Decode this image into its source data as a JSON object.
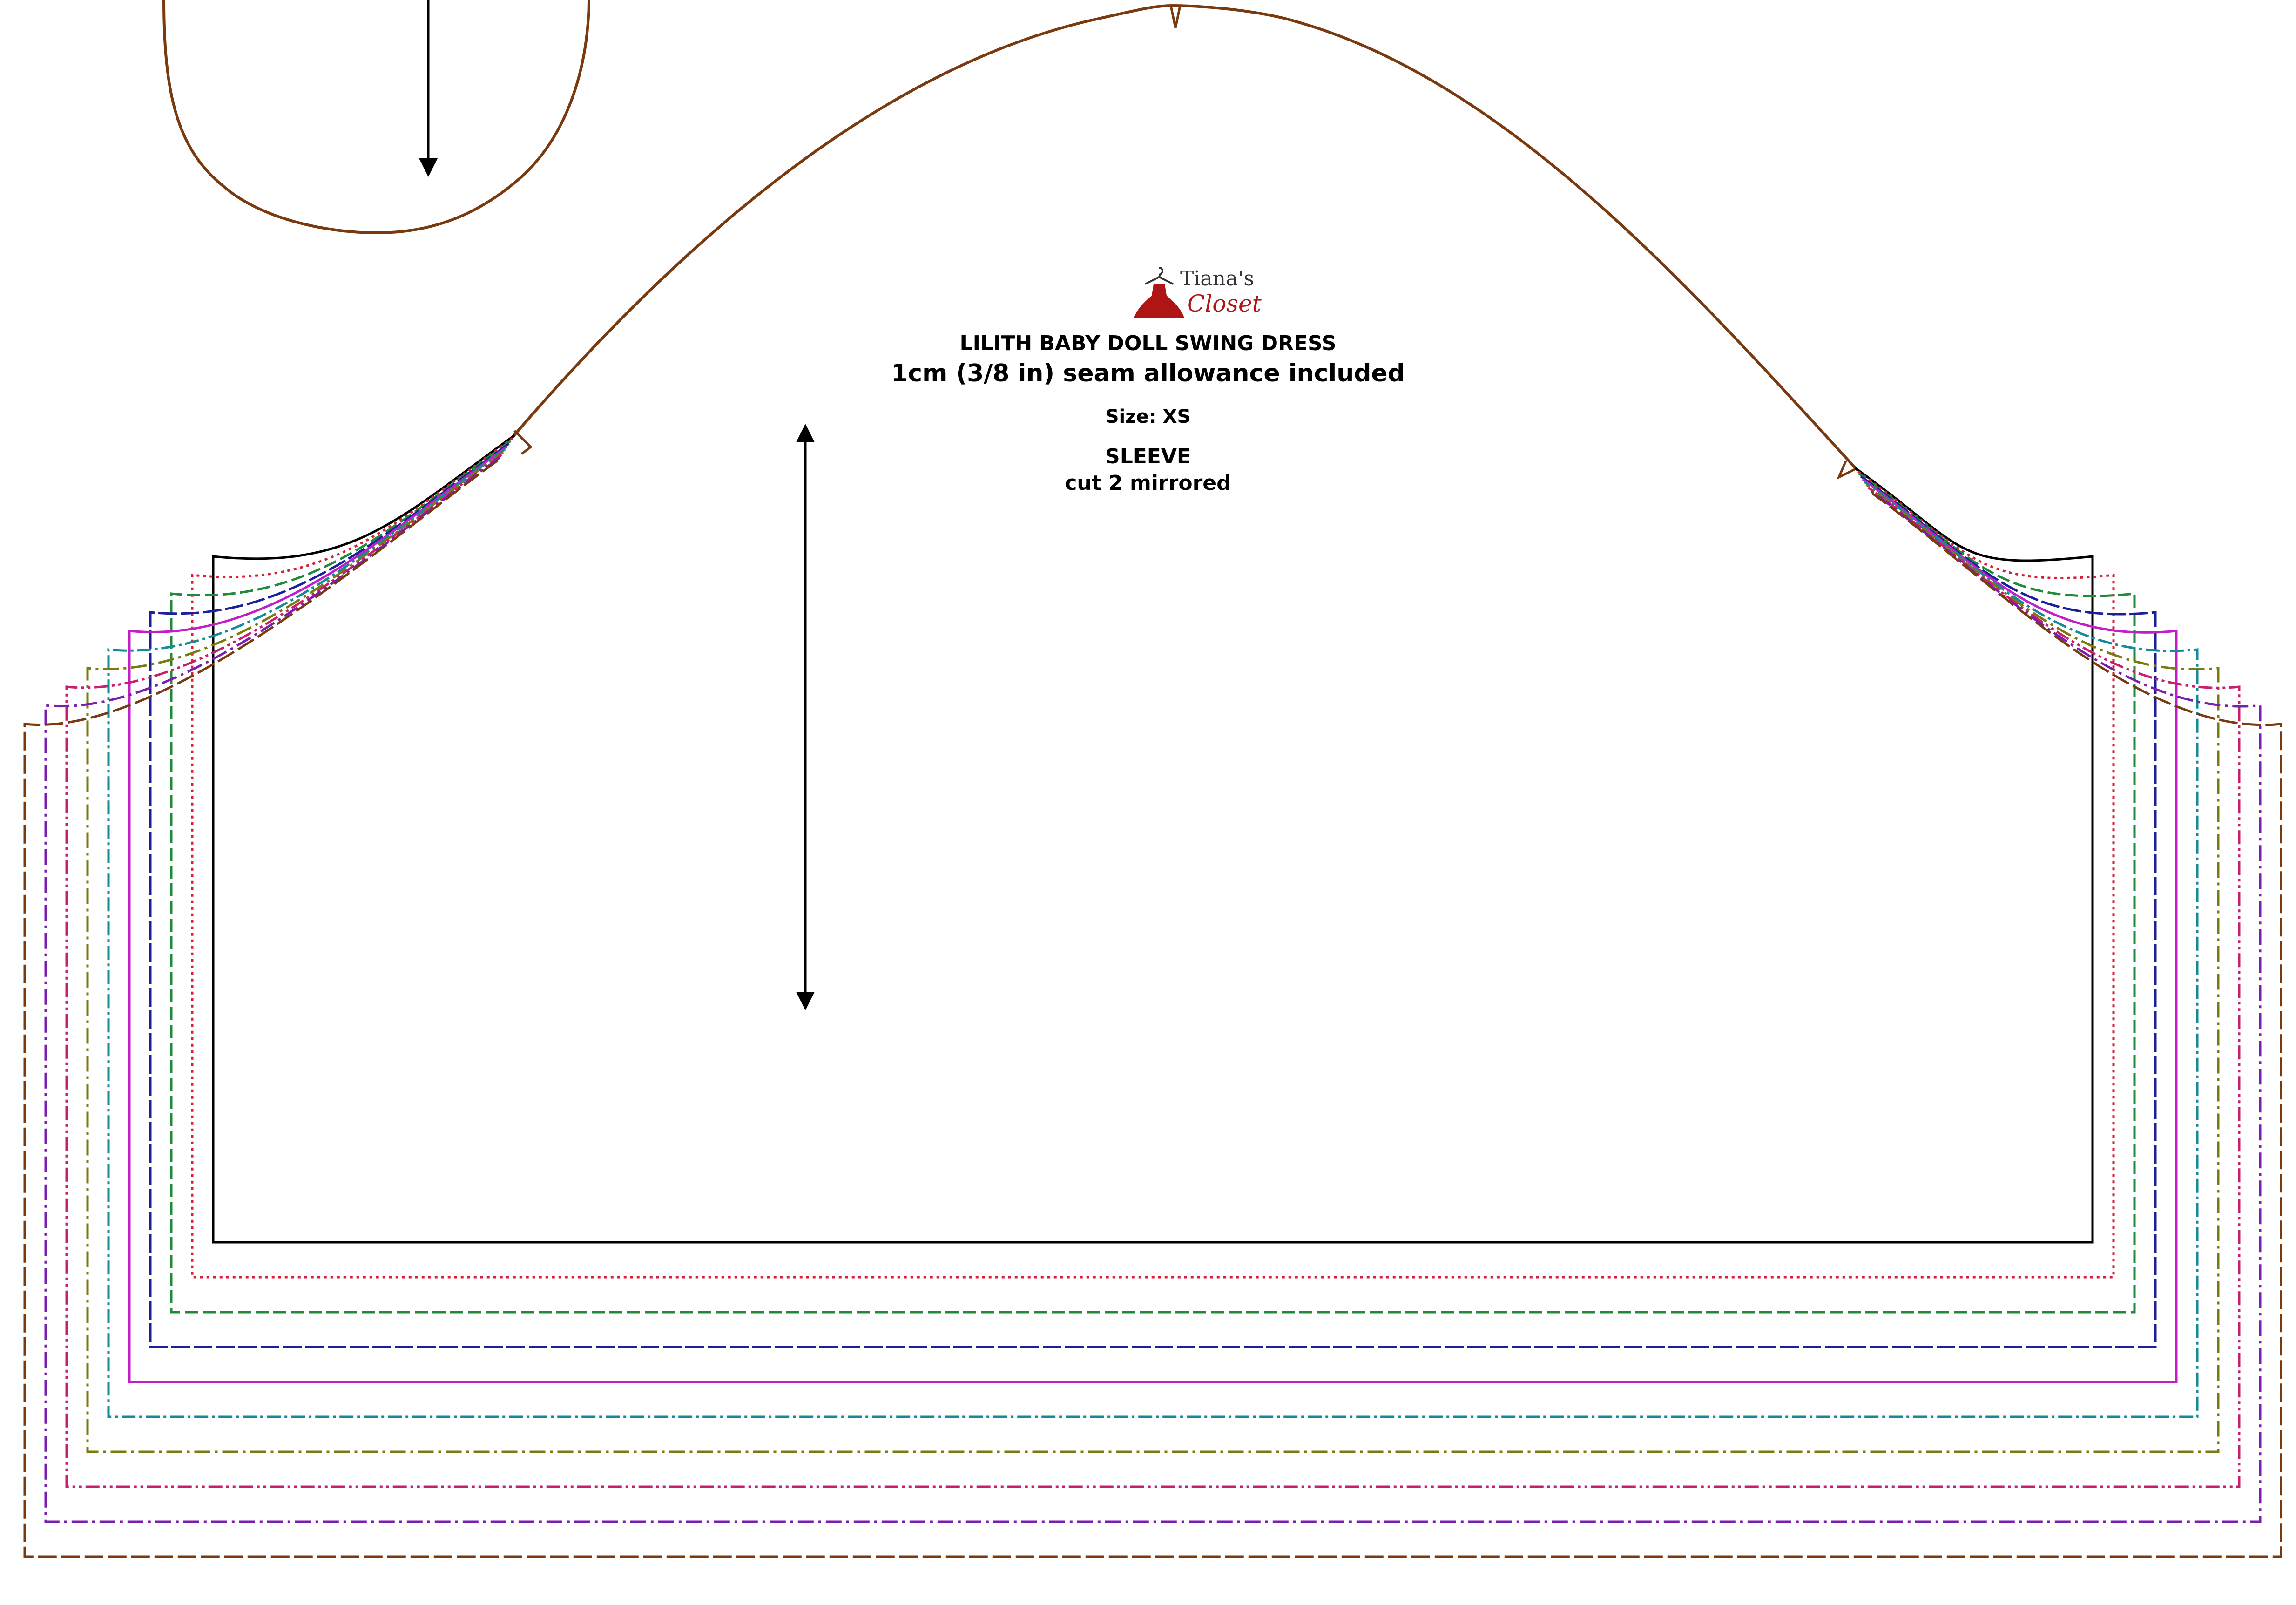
{
  "brand": {
    "name_top": "Tiana's",
    "name_bottom": "Closet",
    "colors": {
      "dress_red": "#b01515",
      "text_gray": "#333333"
    },
    "icon": "dress-on-hanger-icon"
  },
  "pattern": {
    "title": "LILITH BABY DOLL SWING DRESS",
    "seam_note": "1cm (3/8 in) seam allowance included",
    "size_label": "Size: XS",
    "piece_name": "SLEEVE",
    "cut_instruction": "cut 2 mirrored"
  },
  "size_line_colors": [
    "#000000",
    "#d6203a",
    "#1f8a3a",
    "#1b1f9a",
    "#c21ec8",
    "#138a9a",
    "#7a7a10",
    "#c81e6e",
    "#7a1eb0",
    "#7a3a10"
  ]
}
